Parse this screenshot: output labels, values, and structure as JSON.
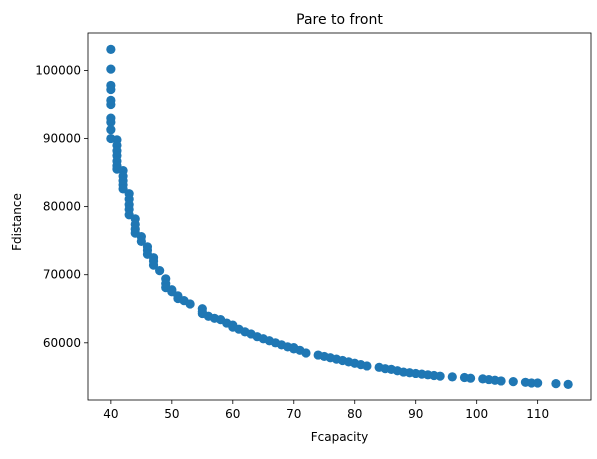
{
  "chart_data": {
    "type": "scatter",
    "title": "Pare to front",
    "xlabel": "Fcapacity",
    "ylabel": "Fdistance",
    "xlim": [
      36.25,
      118.75
    ],
    "ylim": [
      51600,
      105500
    ],
    "xticks": [
      40,
      50,
      60,
      70,
      80,
      90,
      100,
      110
    ],
    "yticks": [
      60000,
      70000,
      80000,
      90000,
      100000
    ],
    "grid": false,
    "marker_color": "#1f77b4",
    "series": [
      {
        "points": [
          [
            40,
            103100
          ],
          [
            40,
            100200
          ],
          [
            40,
            97800
          ],
          [
            40,
            97200
          ],
          [
            40,
            95600
          ],
          [
            40,
            95000
          ],
          [
            40,
            93000
          ],
          [
            40,
            92400
          ],
          [
            40,
            91300
          ],
          [
            40,
            90000
          ],
          [
            41,
            89800
          ],
          [
            41,
            89000
          ],
          [
            41,
            88200
          ],
          [
            41,
            87500
          ],
          [
            41,
            86700
          ],
          [
            41,
            86000
          ],
          [
            41,
            85500
          ],
          [
            42,
            85300
          ],
          [
            42,
            84500
          ],
          [
            42,
            83800
          ],
          [
            42,
            83200
          ],
          [
            42,
            82600
          ],
          [
            43,
            81900
          ],
          [
            43,
            81100
          ],
          [
            43,
            80300
          ],
          [
            43,
            79600
          ],
          [
            43,
            78800
          ],
          [
            44,
            78200
          ],
          [
            44,
            77400
          ],
          [
            44,
            76700
          ],
          [
            44,
            76100
          ],
          [
            45,
            75600
          ],
          [
            45,
            74900
          ],
          [
            46,
            74100
          ],
          [
            46,
            73600
          ],
          [
            46,
            73000
          ],
          [
            47,
            72500
          ],
          [
            47,
            72000
          ],
          [
            47,
            71400
          ],
          [
            48,
            70600
          ],
          [
            49,
            69400
          ],
          [
            49,
            68700
          ],
          [
            49,
            68100
          ],
          [
            50,
            67800
          ],
          [
            50,
            67500
          ],
          [
            51,
            66900
          ],
          [
            51,
            66500
          ],
          [
            52,
            66200
          ],
          [
            53,
            65700
          ],
          [
            55,
            65000
          ],
          [
            55,
            64600
          ],
          [
            55,
            64300
          ],
          [
            56,
            63900
          ],
          [
            57,
            63600
          ],
          [
            58,
            63400
          ],
          [
            59,
            62900
          ],
          [
            60,
            62600
          ],
          [
            60,
            62300
          ],
          [
            61,
            62000
          ],
          [
            62,
            61600
          ],
          [
            63,
            61300
          ],
          [
            64,
            60900
          ],
          [
            65,
            60600
          ],
          [
            66,
            60300
          ],
          [
            67,
            60000
          ],
          [
            68,
            59700
          ],
          [
            69,
            59400
          ],
          [
            70,
            59300
          ],
          [
            70,
            59100
          ],
          [
            71,
            58900
          ],
          [
            72,
            58500
          ],
          [
            74,
            58200
          ],
          [
            75,
            58000
          ],
          [
            76,
            57800
          ],
          [
            77,
            57600
          ],
          [
            78,
            57400
          ],
          [
            79,
            57200
          ],
          [
            80,
            57000
          ],
          [
            81,
            56800
          ],
          [
            82,
            56600
          ],
          [
            84,
            56400
          ],
          [
            85,
            56200
          ],
          [
            86,
            56100
          ],
          [
            87,
            55900
          ],
          [
            88,
            55700
          ],
          [
            89,
            55600
          ],
          [
            90,
            55500
          ],
          [
            91,
            55400
          ],
          [
            92,
            55300
          ],
          [
            93,
            55200
          ],
          [
            94,
            55100
          ],
          [
            96,
            55000
          ],
          [
            98,
            54900
          ],
          [
            99,
            54800
          ],
          [
            101,
            54700
          ],
          [
            102,
            54600
          ],
          [
            103,
            54500
          ],
          [
            104,
            54400
          ],
          [
            106,
            54300
          ],
          [
            108,
            54200
          ],
          [
            109,
            54100
          ],
          [
            110,
            54100
          ],
          [
            113,
            54000
          ],
          [
            115,
            53900
          ]
        ]
      }
    ]
  }
}
